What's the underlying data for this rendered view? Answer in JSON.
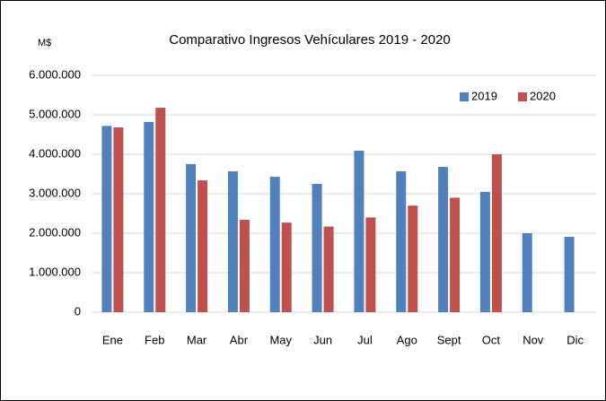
{
  "chart_data": {
    "type": "bar",
    "title": "Comparativo Ingresos Vehículares 2019 - 2020",
    "y_label": "M$",
    "categories": [
      "Ene",
      "Feb",
      "Mar",
      "Abr",
      "May",
      "Jun",
      "Jul",
      "Ago",
      "Sept",
      "Oct",
      "Nov",
      "Dic"
    ],
    "series": [
      {
        "name": "2019",
        "color": "#4f81bd",
        "values": [
          4720000,
          4820000,
          3750000,
          3570000,
          3430000,
          3250000,
          4090000,
          3570000,
          3680000,
          3050000,
          2000000,
          1910000
        ]
      },
      {
        "name": "2020",
        "color": "#c0504d",
        "values": [
          4680000,
          5180000,
          3340000,
          2340000,
          2270000,
          2170000,
          2400000,
          2700000,
          2900000,
          4000000,
          null,
          null
        ]
      }
    ],
    "ylim": [
      0,
      6000000
    ],
    "yticks": [
      0,
      {
        "value": 1000000,
        "label": "1.000.000"
      },
      {
        "value": 2000000,
        "label": "2.000.000"
      },
      {
        "value": 3000000,
        "label": "3.000.000"
      },
      {
        "value": 4000000,
        "label": "4.000.000"
      },
      {
        "value": 5000000,
        "label": "5.000.000"
      },
      {
        "value": 6000000,
        "label": "6.000.000"
      }
    ],
    "grid": true,
    "legend": "top-right"
  }
}
